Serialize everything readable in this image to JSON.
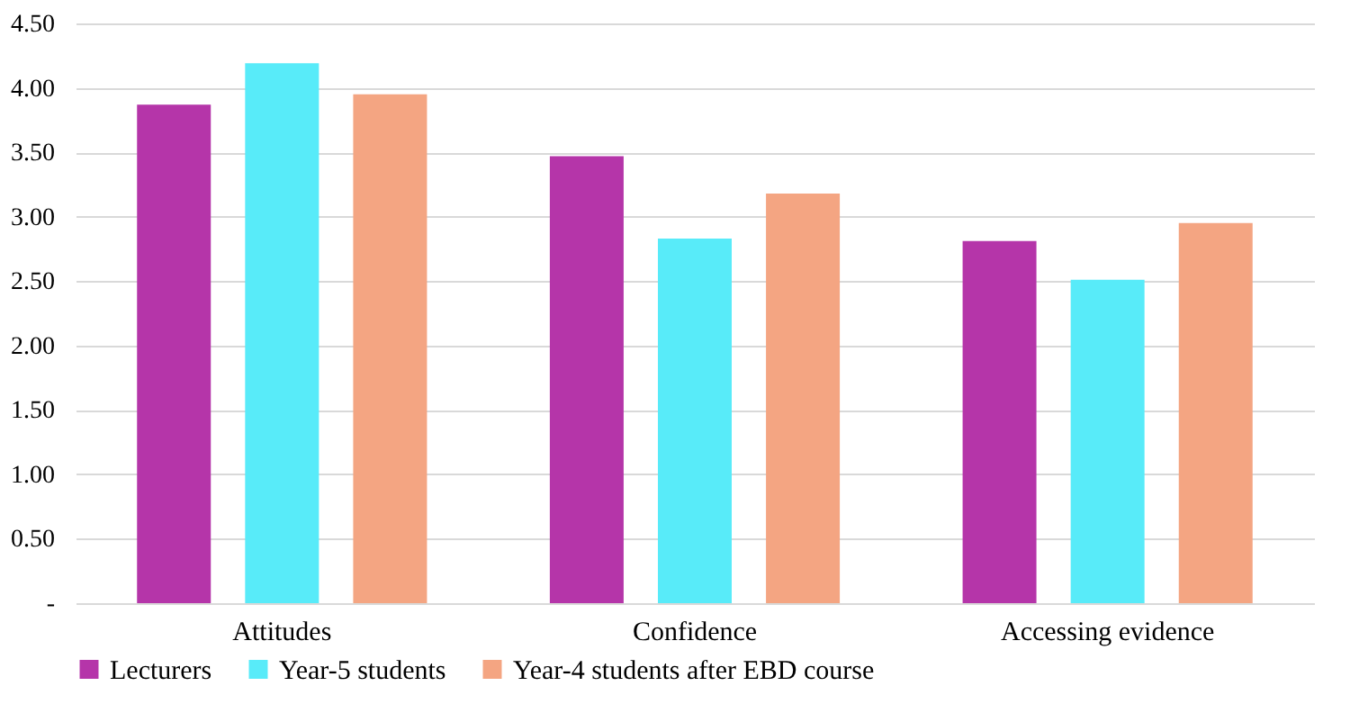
{
  "chart_data": {
    "type": "bar",
    "categories": [
      "Attitudes",
      "Confidence",
      "Accessing evidence"
    ],
    "series": [
      {
        "name": "Lecturers",
        "color": "#b535a9",
        "values": [
          3.87,
          3.47,
          2.81
        ]
      },
      {
        "name": "Year-5 students",
        "color": "#58ebf9",
        "values": [
          4.19,
          2.83,
          2.51
        ]
      },
      {
        "name": "Year-4 students after EBD course",
        "color": "#f4a582",
        "values": [
          3.95,
          3.18,
          2.95
        ]
      }
    ],
    "ylim": [
      0,
      4.5
    ],
    "yticks": [
      {
        "value": 0,
        "label": "-"
      },
      {
        "value": 0.5,
        "label": "0.50"
      },
      {
        "value": 1,
        "label": "1.00"
      },
      {
        "value": 1.5,
        "label": "1.50"
      },
      {
        "value": 2,
        "label": "2.00"
      },
      {
        "value": 2.5,
        "label": "2.50"
      },
      {
        "value": 3,
        "label": "3.00"
      },
      {
        "value": 3.5,
        "label": "3.50"
      },
      {
        "value": 4,
        "label": "4.00"
      },
      {
        "value": 4.5,
        "label": "4.50"
      }
    ],
    "grid": "y",
    "legend": "bottom"
  }
}
